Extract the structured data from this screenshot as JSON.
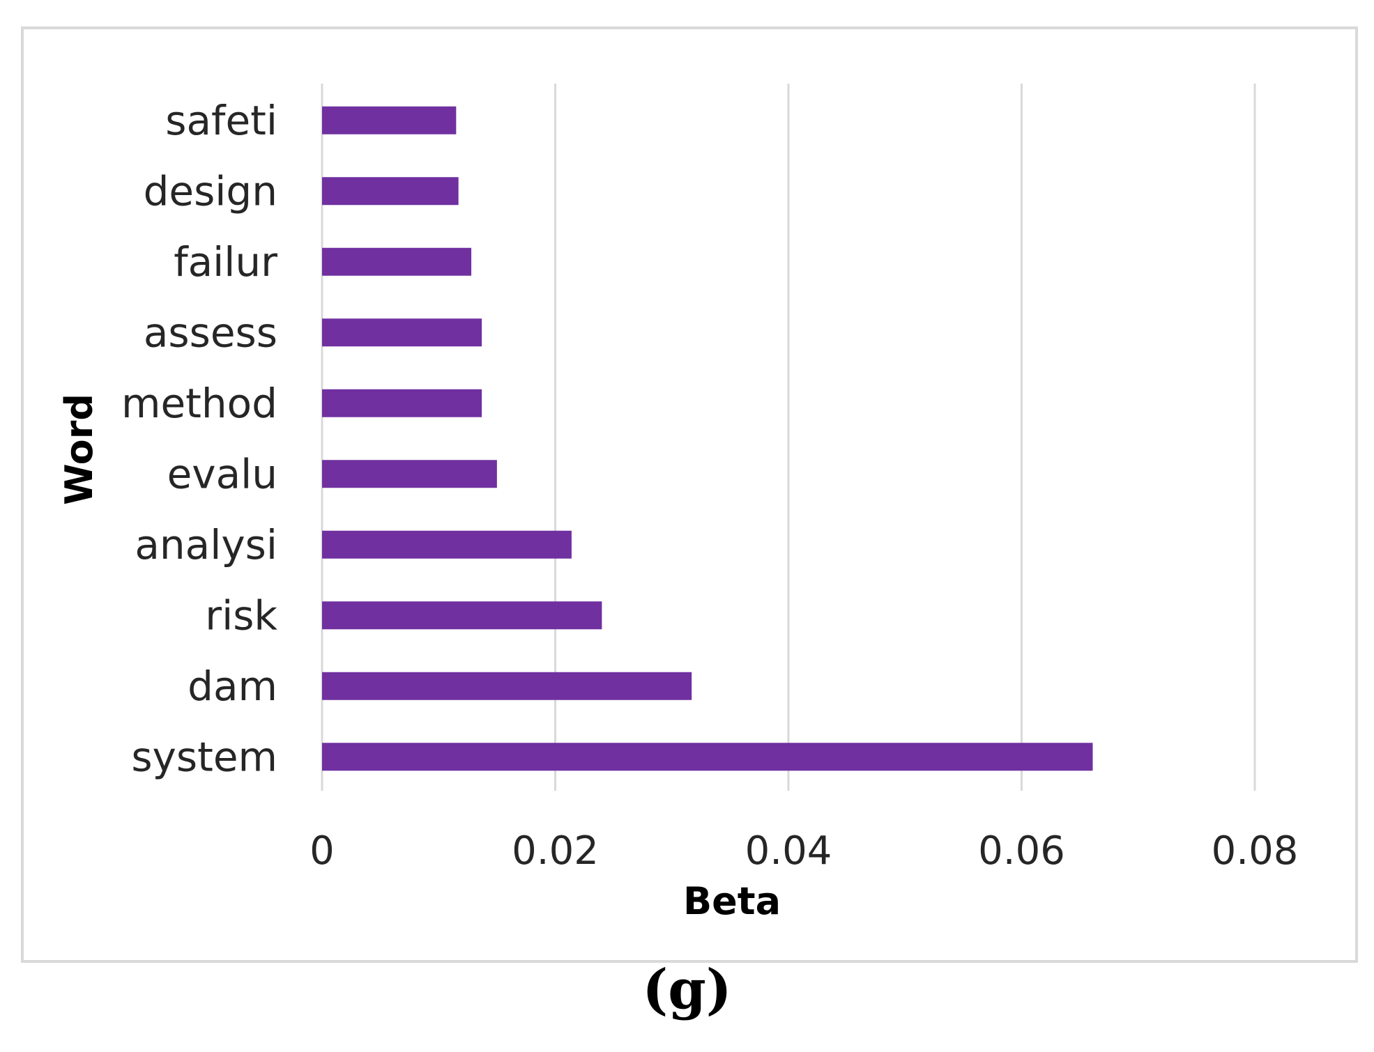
{
  "chart_data": {
    "type": "bar",
    "orientation": "horizontal",
    "title": "",
    "xlabel": "Beta",
    "ylabel": "Word",
    "categories": [
      "safeti",
      "design",
      "failur",
      "assess",
      "method",
      "evalu",
      "analysi",
      "risk",
      "dam",
      "system"
    ],
    "values": [
      0.0115,
      0.0117,
      0.0128,
      0.0137,
      0.0137,
      0.015,
      0.0214,
      0.024,
      0.0317,
      0.0661
    ],
    "xlim": [
      0,
      0.08
    ],
    "xticks": [
      "0",
      "0.02",
      "0.04",
      "0.06",
      "0.08"
    ],
    "grid": true,
    "bar_color": "#7030A0"
  },
  "panel_label": "(g)"
}
